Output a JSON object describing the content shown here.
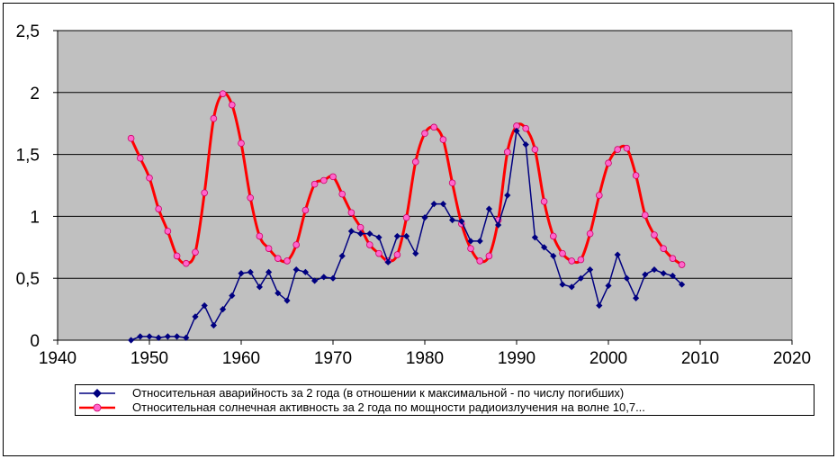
{
  "chart_data": {
    "type": "line",
    "title": "",
    "xlabel": "",
    "ylabel": "",
    "xlim": [
      1940,
      2020
    ],
    "ylim": [
      0,
      2.5
    ],
    "x_ticks": [
      "1940",
      "1950",
      "1960",
      "1970",
      "1980",
      "1990",
      "2000",
      "2010",
      "2020"
    ],
    "y_ticks": [
      "0",
      "0,5",
      "1",
      "1,5",
      "2",
      "2,5"
    ],
    "grid": "horizontal",
    "plot_background": "#C0C0C0",
    "legend_position": "bottom",
    "series": [
      {
        "name": "Относительная аварийность за 2 года (в отношении к максимальной - по числу погибших)",
        "color": "#000080",
        "marker": "diamond",
        "smooth": false,
        "x": [
          1948,
          1949,
          1950,
          1951,
          1952,
          1953,
          1954,
          1955,
          1956,
          1957,
          1958,
          1959,
          1960,
          1961,
          1962,
          1963,
          1964,
          1965,
          1966,
          1967,
          1968,
          1969,
          1970,
          1971,
          1972,
          1973,
          1974,
          1975,
          1976,
          1977,
          1978,
          1979,
          1980,
          1981,
          1982,
          1983,
          1984,
          1985,
          1986,
          1987,
          1988,
          1989,
          1990,
          1991,
          1992,
          1993,
          1994,
          1995,
          1996,
          1997,
          1998,
          1999,
          2000,
          2001,
          2002,
          2003,
          2004,
          2005,
          2006,
          2007,
          2008
        ],
        "values": [
          0,
          0.03,
          0.03,
          0.02,
          0.03,
          0.03,
          0.02,
          0.19,
          0.28,
          0.12,
          0.25,
          0.36,
          0.54,
          0.55,
          0.43,
          0.55,
          0.38,
          0.32,
          0.57,
          0.55,
          0.48,
          0.51,
          0.5,
          0.68,
          0.88,
          0.86,
          0.86,
          0.83,
          0.63,
          0.84,
          0.84,
          0.7,
          0.99,
          1.1,
          1.1,
          0.97,
          0.96,
          0.8,
          0.8,
          1.06,
          0.93,
          1.17,
          1.69,
          1.58,
          0.83,
          0.75,
          0.68,
          0.45,
          0.43,
          0.5,
          0.57,
          0.28,
          0.44,
          0.69,
          0.5,
          0.34,
          0.53,
          0.57,
          0.54,
          0.52,
          0.45
        ]
      },
      {
        "name": "Относительная солнечная активность за 2 года по мощности радиоизлучения на волне 10,7...",
        "color": "#FF0000",
        "marker_color": "#FF66CC",
        "marker": "circle",
        "smooth": true,
        "x": [
          1948,
          1949,
          1950,
          1951,
          1952,
          1953,
          1954,
          1955,
          1956,
          1957,
          1958,
          1959,
          1960,
          1961,
          1962,
          1963,
          1964,
          1965,
          1966,
          1967,
          1968,
          1969,
          1970,
          1971,
          1972,
          1973,
          1974,
          1975,
          1976,
          1977,
          1978,
          1979,
          1980,
          1981,
          1982,
          1983,
          1984,
          1985,
          1986,
          1987,
          1988,
          1989,
          1990,
          1991,
          1992,
          1993,
          1994,
          1995,
          1996,
          1997,
          1998,
          1999,
          2000,
          2001,
          2002,
          2003,
          2004,
          2005,
          2006,
          2007,
          2008
        ],
        "values": [
          1.63,
          1.47,
          1.31,
          1.06,
          0.88,
          0.68,
          0.62,
          0.71,
          1.19,
          1.79,
          1.99,
          1.9,
          1.59,
          1.15,
          0.84,
          0.74,
          0.66,
          0.64,
          0.77,
          1.05,
          1.26,
          1.29,
          1.32,
          1.18,
          1.03,
          0.91,
          0.77,
          0.7,
          0.64,
          0.69,
          0.99,
          1.44,
          1.67,
          1.72,
          1.62,
          1.27,
          0.94,
          0.74,
          0.64,
          0.68,
          0.97,
          1.52,
          1.73,
          1.71,
          1.54,
          1.12,
          0.84,
          0.7,
          0.64,
          0.65,
          0.86,
          1.17,
          1.43,
          1.54,
          1.55,
          1.33,
          1.01,
          0.85,
          0.74,
          0.66,
          0.61
        ]
      }
    ]
  }
}
